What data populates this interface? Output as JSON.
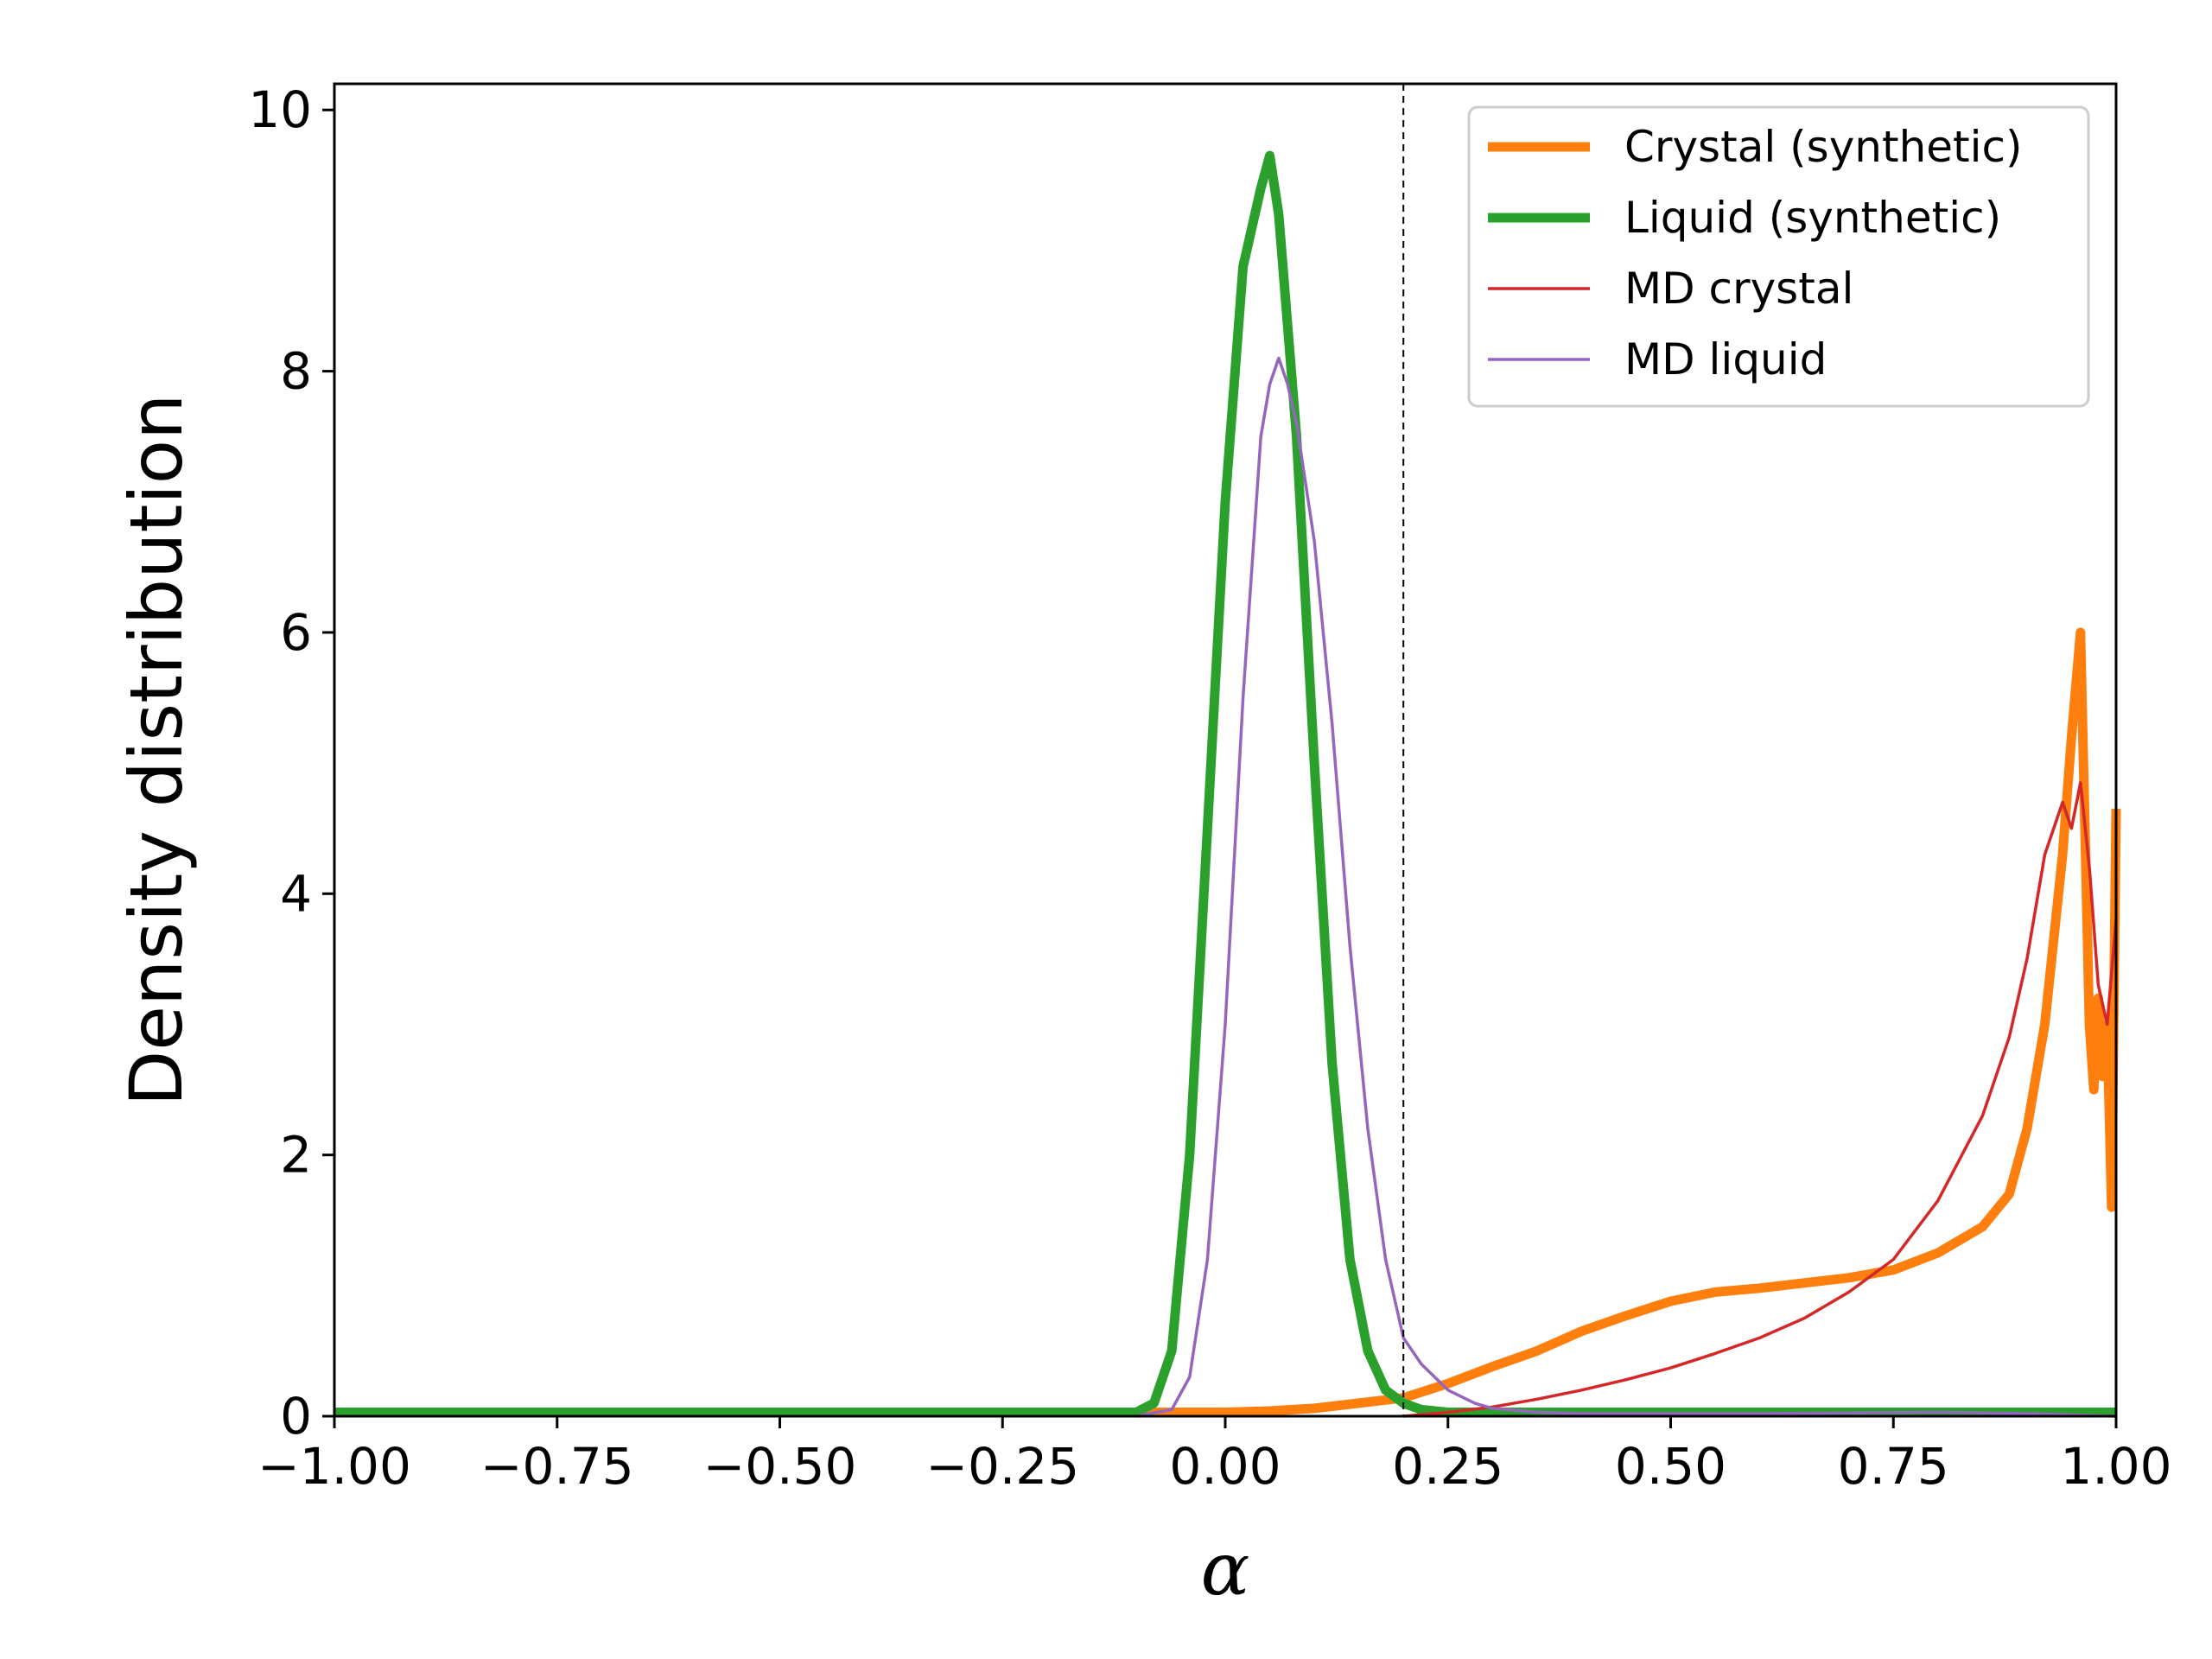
{
  "chart_data": {
    "type": "line",
    "xlabel": "α",
    "ylabel": "Density distribution",
    "xlim": [
      -1.0,
      1.0
    ],
    "ylim": [
      0,
      10.2
    ],
    "x_ticks": [
      "−1.00",
      "−0.75",
      "−0.50",
      "−0.25",
      "0.00",
      "0.25",
      "0.50",
      "0.75",
      "1.00"
    ],
    "x_tick_values": [
      -1.0,
      -0.75,
      -0.5,
      -0.25,
      0.0,
      0.25,
      0.5,
      0.75,
      1.0
    ],
    "y_ticks": [
      "0",
      "2",
      "4",
      "6",
      "8",
      "10"
    ],
    "y_tick_values": [
      0,
      2,
      4,
      6,
      8,
      10
    ],
    "grid": false,
    "legend_position": "top-right",
    "vline_x": 0.2,
    "vline_style": "dashed black",
    "series": [
      {
        "name": "Crystal (synthetic)",
        "color": "#ff7f0e",
        "line_width": "thick",
        "x": [
          -1.0,
          -0.5,
          -0.1,
          0.0,
          0.05,
          0.1,
          0.15,
          0.2,
          0.25,
          0.3,
          0.35,
          0.4,
          0.45,
          0.5,
          0.55,
          0.6,
          0.65,
          0.7,
          0.75,
          0.8,
          0.85,
          0.88,
          0.9,
          0.92,
          0.94,
          0.95,
          0.96,
          0.97,
          0.975,
          0.98,
          0.985,
          0.99,
          0.995,
          1.0
        ],
        "y": [
          0.03,
          0.03,
          0.03,
          0.03,
          0.04,
          0.06,
          0.1,
          0.14,
          0.25,
          0.38,
          0.5,
          0.65,
          0.77,
          0.88,
          0.95,
          0.98,
          1.02,
          1.06,
          1.12,
          1.25,
          1.45,
          1.7,
          2.2,
          3.0,
          4.3,
          5.2,
          6.0,
          3.0,
          2.5,
          3.2,
          2.6,
          3.0,
          1.6,
          4.65
        ]
      },
      {
        "name": "Liquid (synthetic)",
        "color": "#2ca02c",
        "line_width": "thick",
        "x": [
          -1.0,
          -0.5,
          -0.1,
          -0.08,
          -0.06,
          -0.04,
          -0.02,
          0.0,
          0.02,
          0.04,
          0.05,
          0.06,
          0.08,
          0.1,
          0.12,
          0.14,
          0.16,
          0.18,
          0.2,
          0.22,
          0.25,
          0.3,
          0.5,
          1.0
        ],
        "y": [
          0.03,
          0.03,
          0.03,
          0.1,
          0.5,
          2.0,
          4.5,
          7.0,
          8.8,
          9.4,
          9.65,
          9.2,
          7.5,
          5.0,
          2.7,
          1.2,
          0.5,
          0.2,
          0.1,
          0.05,
          0.03,
          0.03,
          0.03,
          0.03
        ]
      },
      {
        "name": "MD crystal",
        "color": "#d62728",
        "line_width": "thin",
        "x": [
          0.2,
          0.25,
          0.3,
          0.35,
          0.4,
          0.45,
          0.5,
          0.55,
          0.6,
          0.65,
          0.7,
          0.75,
          0.8,
          0.85,
          0.88,
          0.9,
          0.92,
          0.94,
          0.95,
          0.96,
          0.97,
          0.98,
          0.99,
          1.0
        ],
        "y": [
          0.0,
          0.03,
          0.07,
          0.13,
          0.2,
          0.28,
          0.37,
          0.48,
          0.6,
          0.75,
          0.95,
          1.2,
          1.65,
          2.3,
          2.9,
          3.5,
          4.3,
          4.7,
          4.5,
          4.85,
          4.2,
          3.3,
          3.0,
          3.8
        ]
      },
      {
        "name": "MD liquid",
        "color": "#9467bd",
        "line_width": "thin",
        "x": [
          -0.1,
          -0.06,
          -0.04,
          -0.02,
          0.0,
          0.02,
          0.04,
          0.05,
          0.06,
          0.07,
          0.08,
          0.1,
          0.12,
          0.14,
          0.16,
          0.18,
          0.2,
          0.22,
          0.25,
          0.28,
          0.3,
          0.35,
          0.4,
          0.6,
          0.8,
          0.9,
          1.0
        ],
        "y": [
          0.0,
          0.05,
          0.3,
          1.2,
          3.0,
          5.5,
          7.5,
          7.9,
          8.1,
          7.9,
          7.6,
          6.7,
          5.3,
          3.6,
          2.2,
          1.2,
          0.6,
          0.4,
          0.2,
          0.1,
          0.06,
          0.03,
          0.02,
          0.02,
          0.03,
          0.02,
          0.0
        ]
      }
    ]
  }
}
